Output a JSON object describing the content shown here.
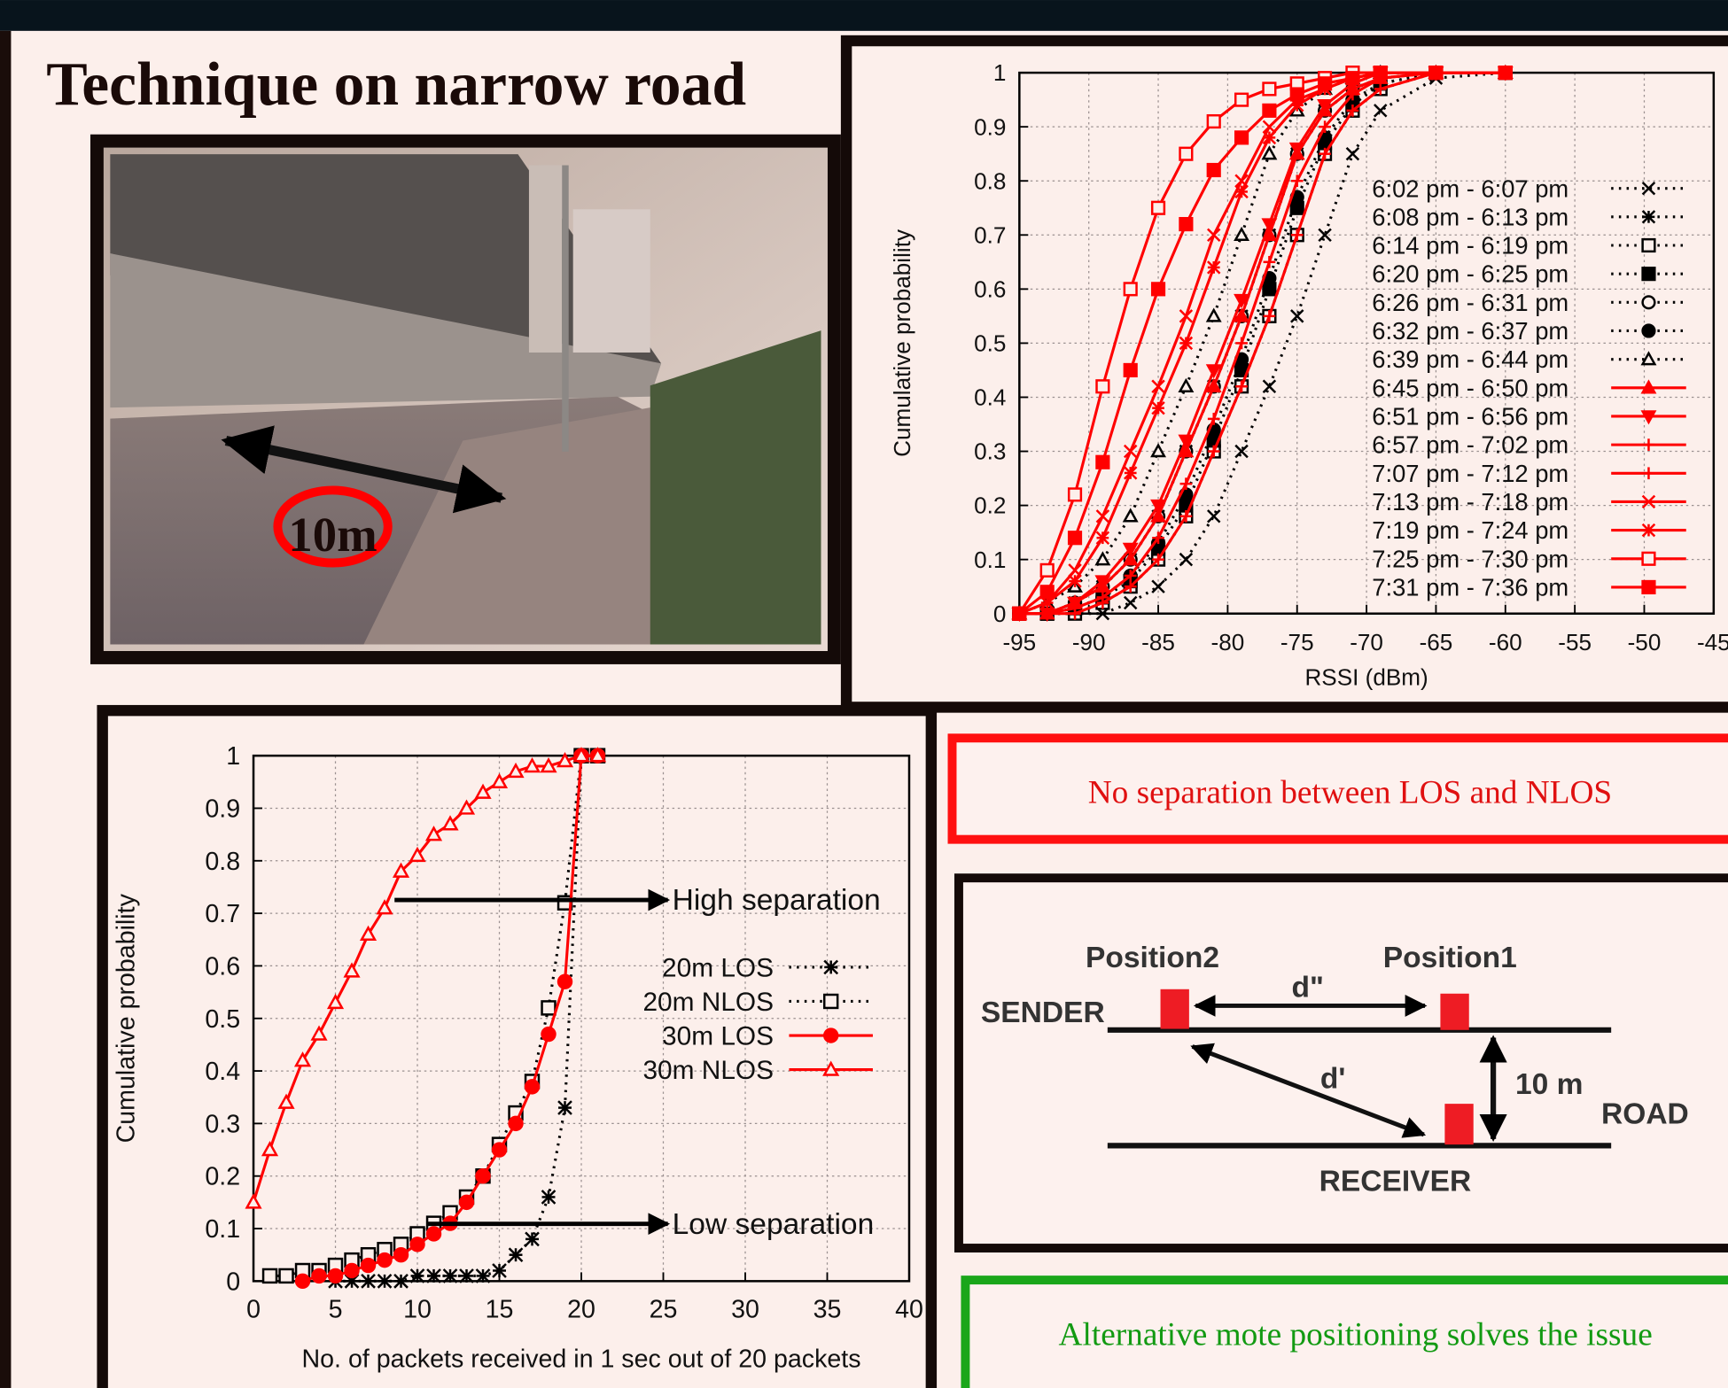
{
  "title": "Technique on narrow road",
  "photo": {
    "label": "10m"
  },
  "callouts": [
    "No separation between LOS and NLOS",
    "Alternative mote positioning solves the issue"
  ],
  "diagram": {
    "position2": "Position2",
    "position1": "Position1",
    "sender": "SENDER",
    "d2": "d\"",
    "d1": "d'",
    "distance": "10 m",
    "road": "ROAD",
    "receiver": "RECEIVER"
  },
  "chart_data": [
    {
      "type": "line",
      "x_label": "RSSI (dBm)",
      "y_label": "Cumulative probability",
      "x": [
        -95,
        -93,
        -91,
        -89,
        -87,
        -85,
        -83,
        -81,
        -79,
        -77,
        -75,
        -73,
        -71,
        -69,
        -65,
        -60
      ],
      "xlim": [
        -95,
        -45
      ],
      "ylim": [
        0,
        1
      ],
      "xticks": [
        -95,
        -90,
        -85,
        -80,
        -75,
        -70,
        -65,
        -60,
        -55,
        -50,
        -45
      ],
      "yticks": [
        0,
        0.1,
        0.2,
        0.3,
        0.4,
        0.5,
        0.6,
        0.7,
        0.8,
        0.9,
        1
      ],
      "grid": true,
      "legend": "right",
      "series": [
        {
          "name": "6:02 pm - 6:07 pm",
          "color": "#000000",
          "dash": "dotted",
          "marker": "x",
          "values": [
            0,
            0,
            0,
            0,
            0.02,
            0.05,
            0.1,
            0.18,
            0.3,
            0.42,
            0.55,
            0.7,
            0.85,
            0.93,
            0.99,
            1
          ]
        },
        {
          "name": "6:08 pm - 6:13 pm",
          "color": "#000000",
          "dash": "dotted",
          "marker": "star",
          "values": [
            0,
            0,
            0.02,
            0.05,
            0.1,
            0.18,
            0.3,
            0.42,
            0.55,
            0.7,
            0.85,
            0.93,
            0.97,
            0.99,
            1,
            1
          ]
        },
        {
          "name": "6:14 pm - 6:19 pm",
          "color": "#000000",
          "dash": "dotted",
          "marker": "square-open",
          "values": [
            0,
            0,
            0,
            0.02,
            0.05,
            0.1,
            0.18,
            0.3,
            0.42,
            0.55,
            0.7,
            0.85,
            0.93,
            0.97,
            1,
            1
          ]
        },
        {
          "name": "6:20 pm - 6:25 pm",
          "color": "#000000",
          "dash": "dotted",
          "marker": "square",
          "values": [
            0,
            0,
            0.01,
            0.03,
            0.06,
            0.12,
            0.2,
            0.32,
            0.45,
            0.6,
            0.75,
            0.87,
            0.94,
            0.98,
            1,
            1
          ]
        },
        {
          "name": "6:26 pm - 6:31 pm",
          "color": "#000000",
          "dash": "dotted",
          "marker": "circle-open",
          "values": [
            0,
            0,
            0.02,
            0.05,
            0.1,
            0.18,
            0.3,
            0.42,
            0.55,
            0.7,
            0.85,
            0.93,
            0.97,
            0.99,
            1,
            1
          ]
        },
        {
          "name": "6:32 pm - 6:37 pm",
          "color": "#000000",
          "dash": "dotted",
          "marker": "circle",
          "values": [
            0,
            0,
            0.01,
            0.03,
            0.07,
            0.13,
            0.22,
            0.34,
            0.47,
            0.62,
            0.77,
            0.88,
            0.95,
            0.98,
            1,
            1
          ]
        },
        {
          "name": "6:39 pm - 6:44 pm",
          "color": "#000000",
          "dash": "dotted",
          "marker": "triangle-open",
          "values": [
            0,
            0.02,
            0.05,
            0.1,
            0.18,
            0.3,
            0.42,
            0.55,
            0.7,
            0.85,
            0.93,
            0.97,
            0.99,
            1,
            1,
            1
          ]
        },
        {
          "name": "6:45 pm - 6:50 pm",
          "color": "#ff0000",
          "dash": "solid",
          "marker": "triangle",
          "values": [
            0,
            0,
            0.02,
            0.05,
            0.1,
            0.18,
            0.3,
            0.42,
            0.55,
            0.7,
            0.85,
            0.93,
            0.97,
            0.99,
            1,
            1
          ]
        },
        {
          "name": "6:51 pm - 6:56 pm",
          "color": "#ff0000",
          "dash": "solid",
          "marker": "triangle-down",
          "values": [
            0,
            0,
            0.02,
            0.06,
            0.12,
            0.2,
            0.32,
            0.45,
            0.58,
            0.72,
            0.86,
            0.94,
            0.98,
            1,
            1,
            1
          ]
        },
        {
          "name": "6:57 pm - 7:02 pm",
          "color": "#ff0000",
          "dash": "solid",
          "marker": "plus",
          "values": [
            0,
            0,
            0,
            0.02,
            0.05,
            0.1,
            0.18,
            0.3,
            0.42,
            0.55,
            0.7,
            0.85,
            0.93,
            0.97,
            1,
            1
          ]
        },
        {
          "name": "7:07 pm - 7:12 pm",
          "color": "#ff0000",
          "dash": "solid",
          "marker": "plus",
          "values": [
            0,
            0,
            0.01,
            0.03,
            0.07,
            0.14,
            0.24,
            0.36,
            0.5,
            0.65,
            0.8,
            0.9,
            0.96,
            0.99,
            1,
            1
          ]
        },
        {
          "name": "7:13 pm - 7:18 pm",
          "color": "#ff0000",
          "dash": "solid",
          "marker": "x",
          "values": [
            0,
            0.02,
            0.08,
            0.18,
            0.3,
            0.42,
            0.55,
            0.7,
            0.8,
            0.9,
            0.95,
            0.97,
            0.99,
            1,
            1,
            1
          ]
        },
        {
          "name": "7:19 pm - 7:24 pm",
          "color": "#ff0000",
          "dash": "solid",
          "marker": "star",
          "values": [
            0,
            0.02,
            0.06,
            0.14,
            0.26,
            0.38,
            0.5,
            0.64,
            0.78,
            0.88,
            0.94,
            0.97,
            0.99,
            1,
            1,
            1
          ]
        },
        {
          "name": "7:25 pm - 7:30 pm",
          "color": "#ff0000",
          "dash": "solid",
          "marker": "square-open",
          "values": [
            0,
            0.08,
            0.22,
            0.42,
            0.6,
            0.75,
            0.85,
            0.91,
            0.95,
            0.97,
            0.98,
            0.99,
            1,
            1,
            1,
            1
          ]
        },
        {
          "name": "7:31 pm - 7:36 pm",
          "color": "#ff0000",
          "dash": "solid",
          "marker": "square",
          "values": [
            0,
            0.04,
            0.14,
            0.28,
            0.45,
            0.6,
            0.72,
            0.82,
            0.88,
            0.93,
            0.96,
            0.98,
            0.99,
            1,
            1,
            1
          ]
        }
      ]
    },
    {
      "type": "line",
      "x_label": "No. of packets received in 1 sec out of 20 packets",
      "y_label": "Cumulative probability",
      "x": [
        0,
        1,
        2,
        3,
        4,
        5,
        6,
        7,
        8,
        9,
        10,
        11,
        12,
        13,
        14,
        15,
        16,
        17,
        18,
        19,
        20,
        21
      ],
      "xlim": [
        0,
        40
      ],
      "ylim": [
        0,
        1
      ],
      "xticks": [
        0,
        5,
        10,
        15,
        20,
        25,
        30,
        35,
        40
      ],
      "yticks": [
        0,
        0.1,
        0.2,
        0.3,
        0.4,
        0.5,
        0.6,
        0.7,
        0.8,
        0.9,
        1
      ],
      "grid": true,
      "legend": "right",
      "annotations": [
        "High separation",
        "Low separation"
      ],
      "series": [
        {
          "name": "20m LOS",
          "color": "#000000",
          "dash": "dotted",
          "marker": "star",
          "values": [
            null,
            null,
            null,
            null,
            null,
            0,
            0,
            0,
            0,
            0,
            0.01,
            0.01,
            0.01,
            0.01,
            0.01,
            0.02,
            0.05,
            0.08,
            0.16,
            0.33,
            1,
            1
          ]
        },
        {
          "name": "20m NLOS",
          "color": "#000000",
          "dash": "dotted",
          "marker": "square-open",
          "values": [
            null,
            0.01,
            0.01,
            0.02,
            0.02,
            0.03,
            0.04,
            0.05,
            0.06,
            0.07,
            0.09,
            0.11,
            0.13,
            0.16,
            0.2,
            0.26,
            0.32,
            0.38,
            0.52,
            0.72,
            1,
            1
          ]
        },
        {
          "name": "30m LOS",
          "color": "#ff0000",
          "dash": "solid",
          "marker": "circle",
          "values": [
            null,
            null,
            null,
            0,
            0.01,
            0.01,
            0.02,
            0.03,
            0.04,
            0.05,
            0.07,
            0.09,
            0.11,
            0.15,
            0.2,
            0.25,
            0.3,
            0.37,
            0.47,
            0.57,
            1,
            1
          ]
        },
        {
          "name": "30m NLOS",
          "color": "#ff0000",
          "dash": "solid",
          "marker": "triangle-open",
          "values": [
            0.15,
            0.25,
            0.34,
            0.42,
            0.47,
            0.53,
            0.59,
            0.66,
            0.71,
            0.78,
            0.81,
            0.85,
            0.87,
            0.9,
            0.93,
            0.95,
            0.97,
            0.98,
            0.98,
            0.99,
            1,
            1
          ]
        }
      ]
    }
  ]
}
